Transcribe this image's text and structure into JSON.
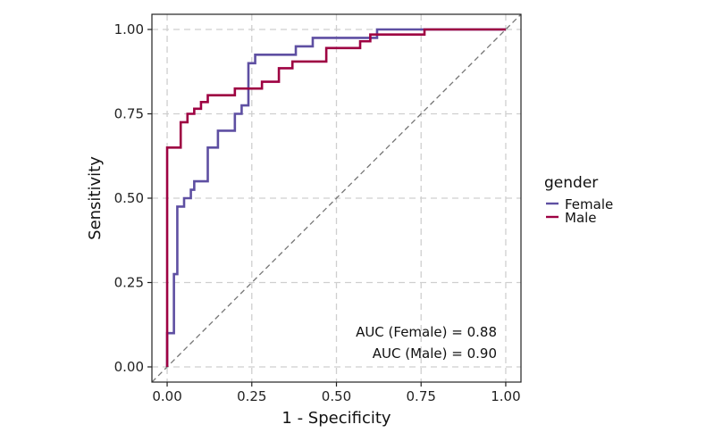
{
  "chart_data": {
    "type": "line",
    "title": "",
    "xlabel": "1 - Specificity",
    "ylabel": "Sensitivity",
    "xlim": [
      -0.045,
      1.045
    ],
    "ylim": [
      -0.045,
      1.045
    ],
    "x_ticks": [
      0,
      0.25,
      0.5,
      0.75,
      1.0
    ],
    "y_ticks": [
      0,
      0.25,
      0.5,
      0.75,
      1.0
    ],
    "x_tick_labels": [
      "0.00",
      "0.25",
      "0.50",
      "0.75",
      "1.00"
    ],
    "y_tick_labels": [
      "0.00",
      "0.25",
      "0.50",
      "0.75",
      "1.00"
    ],
    "grid": true,
    "grid_style": "dashed",
    "reference_line": {
      "from": [
        0,
        0
      ],
      "to": [
        1,
        1
      ],
      "style": "dashed",
      "color": "#777777"
    },
    "legend": {
      "title": "gender",
      "placement": "right"
    },
    "series": [
      {
        "name": "Female",
        "color": "#5E4FA2",
        "x": [
          0,
          0,
          0.02,
          0.02,
          0.03,
          0.03,
          0.05,
          0.05,
          0.07,
          0.07,
          0.08,
          0.08,
          0.12,
          0.12,
          0.15,
          0.15,
          0.2,
          0.2,
          0.22,
          0.22,
          0.24,
          0.24,
          0.26,
          0.26,
          0.38,
          0.38,
          0.43,
          0.43,
          0.57,
          0.57,
          0.62,
          0.62,
          0.75,
          0.75,
          1.0
        ],
        "y": [
          0,
          0.1,
          0.1,
          0.275,
          0.275,
          0.475,
          0.475,
          0.5,
          0.5,
          0.525,
          0.525,
          0.55,
          0.55,
          0.65,
          0.65,
          0.7,
          0.7,
          0.75,
          0.75,
          0.775,
          0.775,
          0.9,
          0.9,
          0.925,
          0.925,
          0.95,
          0.95,
          0.975,
          0.975,
          0.975,
          0.975,
          1.0,
          1.0,
          1.0,
          1.0
        ]
      },
      {
        "name": "Male",
        "color": "#9E0142",
        "x": [
          0,
          0,
          0.04,
          0.04,
          0.06,
          0.06,
          0.08,
          0.08,
          0.1,
          0.1,
          0.12,
          0.12,
          0.2,
          0.2,
          0.28,
          0.28,
          0.33,
          0.33,
          0.37,
          0.37,
          0.47,
          0.47,
          0.57,
          0.57,
          0.6,
          0.6,
          0.76,
          0.76,
          1.0
        ],
        "y": [
          0,
          0.65,
          0.65,
          0.725,
          0.725,
          0.75,
          0.75,
          0.765,
          0.765,
          0.785,
          0.785,
          0.805,
          0.805,
          0.825,
          0.825,
          0.845,
          0.845,
          0.885,
          0.885,
          0.905,
          0.905,
          0.945,
          0.945,
          0.965,
          0.965,
          0.985,
          0.985,
          1.0,
          1.0
        ]
      }
    ],
    "annotations": [
      "AUC (Female) = 0.88",
      "AUC (Male) = 0.90"
    ]
  }
}
